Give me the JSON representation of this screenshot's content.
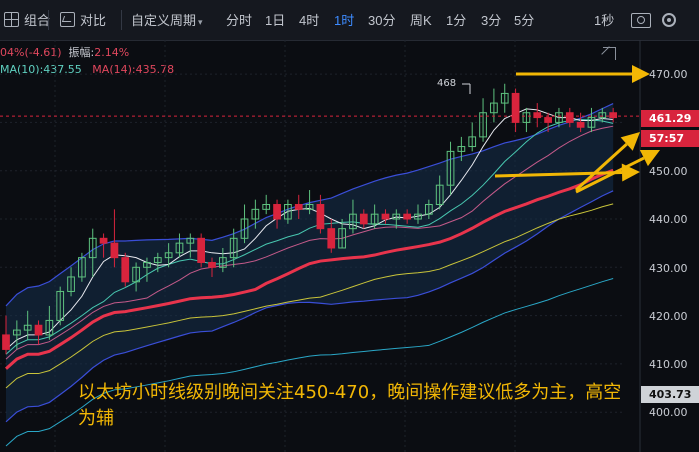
{
  "toolbar": {
    "combo_label": "组合",
    "compare_label": "对比",
    "custom_period_label": "自定义周期",
    "periods": [
      "分时",
      "1日",
      "4时",
      "1时",
      "30分",
      "周K",
      "1分",
      "3分",
      "5分"
    ],
    "active_period": "1时",
    "refresh_label": "1秒",
    "caret": "▾"
  },
  "info": {
    "change_text": "04%(-4.61)",
    "amplitude_label": "振幅:",
    "amplitude_value": "2.14%",
    "ma10_text": "MA(10):437.55",
    "ma14_text": "MA(14):435.78"
  },
  "axis": {
    "labels": [
      "470.00",
      "450.00",
      "440.00",
      "430.00",
      "420.00",
      "410.00",
      "400.00"
    ],
    "current_price": "461.29",
    "countdown": "57:57",
    "low_marker": "403.73"
  },
  "chart_data": {
    "type": "candlestick",
    "y_range": [
      396,
      476
    ],
    "peak_label": "468",
    "candles": [
      [
        416,
        413,
        420,
        412
      ],
      [
        416,
        417,
        419,
        413
      ],
      [
        417,
        418,
        421,
        415
      ],
      [
        418,
        416,
        419,
        414
      ],
      [
        416,
        419,
        422,
        415
      ],
      [
        419,
        425,
        426,
        418
      ],
      [
        425,
        428,
        430,
        424
      ],
      [
        428,
        432,
        433,
        427
      ],
      [
        432,
        436,
        438,
        428
      ],
      [
        436,
        435,
        437,
        432
      ],
      [
        435,
        432,
        442,
        430
      ],
      [
        432,
        427,
        433,
        426
      ],
      [
        427,
        430,
        431,
        425
      ],
      [
        430,
        431,
        432,
        427
      ],
      [
        431,
        432,
        433,
        429
      ],
      [
        432,
        433,
        435,
        430
      ],
      [
        433,
        435,
        437,
        432
      ],
      [
        435,
        436,
        437,
        432
      ],
      [
        436,
        431,
        437,
        430
      ],
      [
        431,
        430,
        432,
        428
      ],
      [
        430,
        432,
        434,
        429
      ],
      [
        432,
        436,
        438,
        430
      ],
      [
        436,
        440,
        443,
        435
      ],
      [
        440,
        442,
        444,
        438
      ],
      [
        442,
        443,
        445,
        441
      ],
      [
        443,
        440,
        444,
        438
      ],
      [
        440,
        443,
        444,
        439
      ],
      [
        443,
        442,
        445,
        440
      ],
      [
        442,
        443,
        446,
        441
      ],
      [
        443,
        438,
        445,
        437
      ],
      [
        438,
        434,
        440,
        433
      ],
      [
        434,
        438,
        440,
        434
      ],
      [
        438,
        441,
        444,
        437
      ],
      [
        441,
        439,
        442,
        438
      ],
      [
        439,
        441,
        443,
        438
      ],
      [
        441,
        440,
        442,
        439
      ],
      [
        440,
        441,
        442,
        438
      ],
      [
        441,
        440,
        442,
        439
      ],
      [
        440,
        441,
        443,
        439
      ],
      [
        441,
        443,
        444,
        440
      ],
      [
        443,
        447,
        449,
        442
      ],
      [
        447,
        454,
        456,
        445
      ],
      [
        454,
        455,
        457,
        452
      ],
      [
        455,
        457,
        460,
        454
      ],
      [
        457,
        462,
        465,
        456
      ],
      [
        462,
        464,
        467,
        460
      ],
      [
        464,
        466,
        468,
        462
      ],
      [
        466,
        460,
        467,
        458
      ],
      [
        460,
        462,
        463,
        458
      ],
      [
        462,
        461,
        464,
        459
      ],
      [
        461,
        460,
        462,
        458
      ],
      [
        460,
        462,
        463,
        459
      ],
      [
        462,
        460,
        463,
        459
      ],
      [
        460,
        459,
        462,
        458
      ],
      [
        459,
        461,
        463,
        458
      ],
      [
        461,
        462,
        463,
        460
      ],
      [
        462,
        461,
        463,
        460
      ]
    ],
    "annotation_text": "以太坊小时线级别晚间关注450-470，晚间操作建议低多为主，高空为辅"
  },
  "colors": {
    "up": "#5ec27f",
    "down": "#d8243d",
    "band": "#3a4ed8",
    "ma_main": "#e8344c",
    "ma_yellow": "#c9c43a",
    "ma_teal": "#48c7b0",
    "ma_white": "#e8eaf0",
    "ma_cyan": "#2aa7c7",
    "arrow": "#f2b705"
  }
}
